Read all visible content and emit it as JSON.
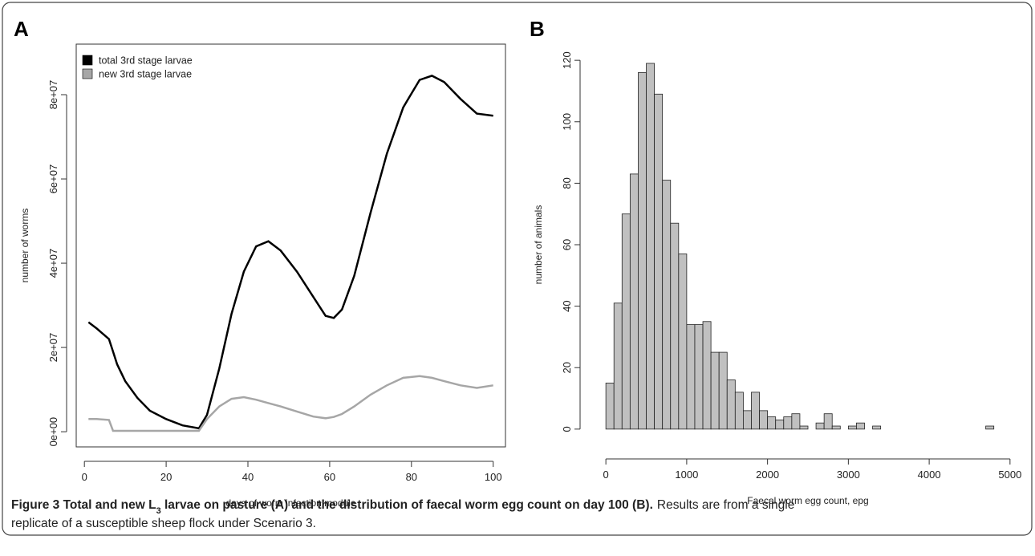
{
  "chart_data": [
    {
      "type": "line",
      "panel": "A",
      "xlabel": "days of worm infection module",
      "ylabel": "number of worms",
      "x": [
        1,
        3,
        6,
        7,
        8,
        10,
        13,
        16,
        20,
        24,
        28,
        30,
        33,
        36,
        39,
        42,
        45,
        48,
        52,
        56,
        59,
        61,
        63,
        66,
        70,
        74,
        78,
        82,
        85,
        88,
        92,
        96,
        100
      ],
      "series": [
        {
          "name": "total 3rd stage larvae",
          "color": "#000000",
          "values": [
            26000000,
            24500000,
            22000000,
            19000000,
            16000000,
            12000000,
            8000000,
            5000000,
            3000000,
            1500000,
            800000,
            4000000,
            15000000,
            28000000,
            38000000,
            44000000,
            45200000,
            43000000,
            38000000,
            32000000,
            27500000,
            27000000,
            29000000,
            37000000,
            52000000,
            66000000,
            77000000,
            83500000,
            84500000,
            83000000,
            79000000,
            75500000,
            75000000
          ]
        },
        {
          "name": "new 3rd stage larvae",
          "color": "#a6a6a6",
          "values": [
            3000000,
            3000000,
            2800000,
            200000,
            200000,
            200000,
            200000,
            200000,
            200000,
            200000,
            200000,
            3000000,
            6000000,
            7800000,
            8200000,
            7600000,
            6800000,
            6000000,
            4800000,
            3600000,
            3200000,
            3500000,
            4200000,
            6000000,
            8800000,
            11000000,
            12800000,
            13200000,
            12800000,
            12000000,
            11000000,
            10400000,
            11000000
          ]
        }
      ],
      "xlim": [
        -2,
        103
      ],
      "xticks": [
        0,
        20,
        40,
        60,
        80,
        100
      ],
      "ylim": [
        -3600000,
        92000000
      ],
      "yticks": [
        {
          "value": 0,
          "label": "0e+00"
        },
        {
          "value": 20000000,
          "label": "2e+07"
        },
        {
          "value": 40000000,
          "label": "4e+07"
        },
        {
          "value": 60000000,
          "label": "6e+07"
        },
        {
          "value": 80000000,
          "label": "8e+07"
        }
      ],
      "legend": "top-left"
    },
    {
      "type": "histogram",
      "panel": "B",
      "xlabel": "Faecal worm egg count, epg",
      "ylabel": "number of animals",
      "color": "#c0c0c0",
      "bins": [
        0,
        100,
        200,
        300,
        400,
        500,
        600,
        700,
        800,
        900,
        1000,
        1100,
        1200,
        1300,
        1400,
        1500,
        1600,
        1700,
        1800,
        1900,
        2000,
        2100,
        2200,
        2300,
        2400,
        2500,
        2600,
        2700,
        2800,
        2900,
        3000,
        3100,
        3200,
        3300,
        3400,
        3500,
        3600,
        3700,
        3800,
        3900,
        4000,
        4100,
        4200,
        4300,
        4400,
        4500,
        4600,
        4700,
        4800,
        4900,
        5000
      ],
      "values": [
        15,
        41,
        70,
        83,
        116,
        119,
        109,
        81,
        67,
        57,
        34,
        34,
        35,
        25,
        25,
        16,
        12,
        6,
        12,
        6,
        4,
        3,
        4,
        5,
        1,
        0,
        2,
        5,
        1,
        0,
        1,
        2,
        0,
        1,
        0,
        0,
        0,
        0,
        0,
        0,
        0,
        0,
        0,
        0,
        0,
        0,
        0,
        1,
        0,
        0
      ],
      "xlim": [
        -200,
        5200
      ],
      "xticks": [
        0,
        1000,
        2000,
        3000,
        4000,
        5000
      ],
      "ylim": [
        -5,
        125
      ],
      "yticks": [
        0,
        20,
        40,
        60,
        80,
        100,
        120
      ]
    }
  ],
  "caption": {
    "bold_before": "Figure 3 Total and new L",
    "subscript": "3",
    "bold_after": " larvae on pasture (A) and the distribution of faecal worm egg count on day 100 (B).",
    "text_lines": [
      "Results are from a single",
      "replicate of a susceptible sheep flock under Scenario 3."
    ]
  }
}
